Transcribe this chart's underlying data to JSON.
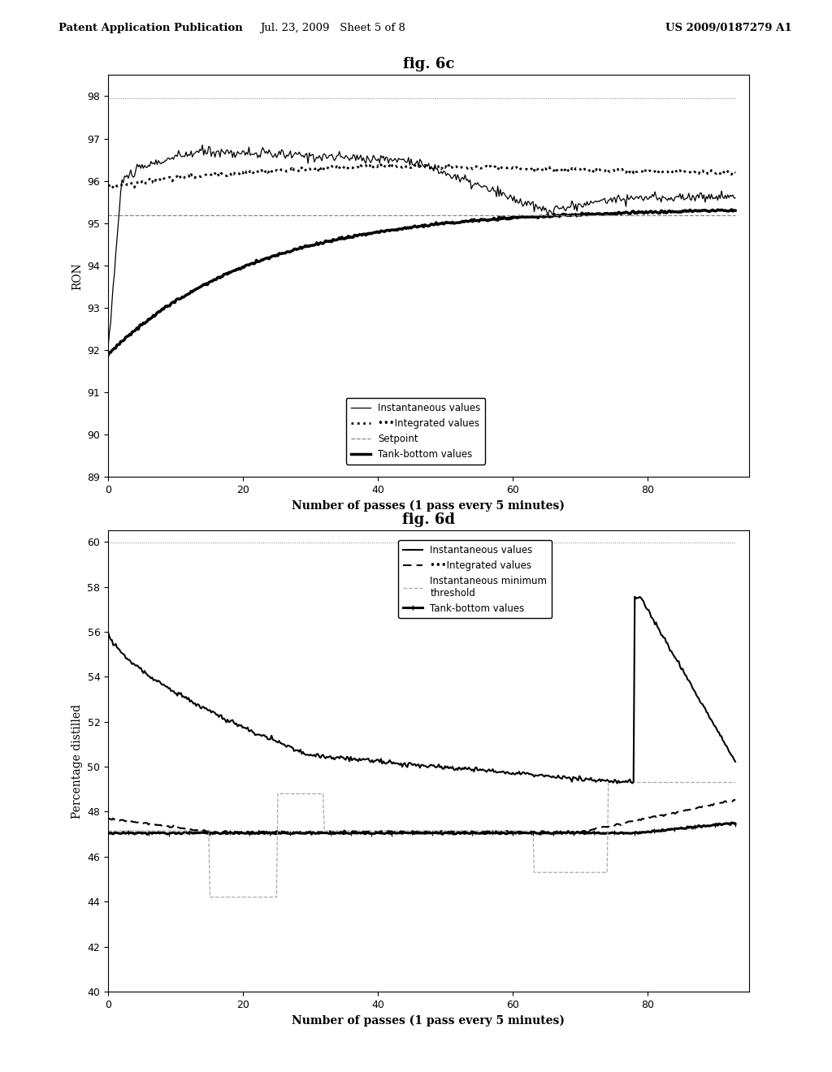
{
  "header_left": "Patent Application Publication",
  "header_center": "Jul. 23, 2009   Sheet 5 of 8",
  "header_right": "US 2009/0187279 A1",
  "top": {
    "title": "fig. 6c",
    "ylabel": "RON",
    "xlabel": "Number of passes (1 pass every 5 minutes)",
    "ylim": [
      89,
      98.5
    ],
    "yticks": [
      89,
      90,
      91,
      92,
      93,
      94,
      95,
      96,
      97,
      98
    ],
    "xlim": [
      0,
      95
    ],
    "xticks": [
      0,
      20,
      40,
      60,
      80
    ]
  },
  "bottom": {
    "title": "fig. 6d",
    "ylabel": "Percentage distilled",
    "xlabel": "Number of passes (1 pass every 5 minutes)",
    "ylim": [
      40,
      60.5
    ],
    "yticks": [
      40,
      42,
      44,
      46,
      48,
      50,
      52,
      54,
      56,
      58,
      60
    ],
    "xlim": [
      0,
      95
    ],
    "xticks": [
      0,
      20,
      40,
      60,
      80
    ]
  }
}
